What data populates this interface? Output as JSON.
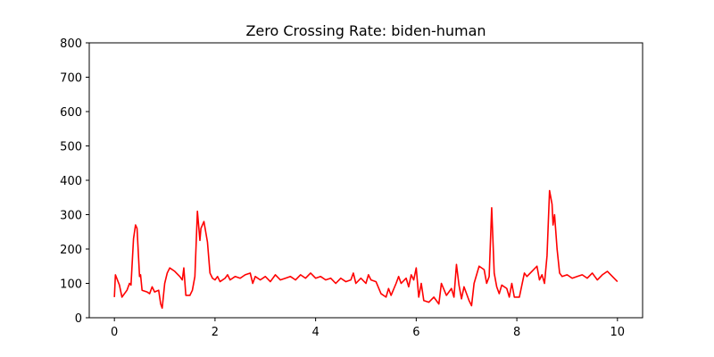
{
  "chart_data": {
    "type": "line",
    "title": "Zero Crossing Rate: biden-human",
    "color": "#ff0000",
    "x": [
      0.0,
      0.02,
      0.1,
      0.15,
      0.25,
      0.3,
      0.33,
      0.38,
      0.42,
      0.45,
      0.5,
      0.52,
      0.55,
      0.65,
      0.7,
      0.75,
      0.8,
      0.88,
      0.92,
      0.95,
      1.0,
      1.05,
      1.1,
      1.2,
      1.3,
      1.35,
      1.38,
      1.42,
      1.5,
      1.55,
      1.6,
      1.65,
      1.7,
      1.72,
      1.78,
      1.85,
      1.9,
      1.95,
      2.0,
      2.05,
      2.1,
      2.2,
      2.25,
      2.3,
      2.4,
      2.5,
      2.6,
      2.7,
      2.75,
      2.8,
      2.9,
      3.0,
      3.1,
      3.2,
      3.3,
      3.4,
      3.5,
      3.6,
      3.7,
      3.8,
      3.9,
      4.0,
      4.1,
      4.2,
      4.3,
      4.4,
      4.5,
      4.6,
      4.7,
      4.75,
      4.8,
      4.9,
      5.0,
      5.05,
      5.1,
      5.2,
      5.3,
      5.4,
      5.45,
      5.5,
      5.6,
      5.65,
      5.7,
      5.8,
      5.85,
      5.9,
      5.95,
      6.0,
      6.05,
      6.1,
      6.15,
      6.25,
      6.35,
      6.45,
      6.5,
      6.6,
      6.7,
      6.75,
      6.8,
      6.85,
      6.9,
      6.95,
      7.05,
      7.1,
      7.15,
      7.25,
      7.35,
      7.4,
      7.45,
      7.5,
      7.55,
      7.6,
      7.65,
      7.7,
      7.8,
      7.85,
      7.9,
      7.95,
      8.05,
      8.15,
      8.2,
      8.3,
      8.4,
      8.45,
      8.5,
      8.55,
      8.6,
      8.65,
      8.7,
      8.72,
      8.75,
      8.8,
      8.85,
      8.9,
      9.0,
      9.1,
      9.2,
      9.3,
      9.4,
      9.5,
      9.55,
      9.6,
      9.7,
      9.8,
      9.9,
      10.0
    ],
    "values": [
      60,
      125,
      95,
      60,
      80,
      100,
      95,
      230,
      270,
      260,
      120,
      125,
      80,
      75,
      70,
      90,
      75,
      80,
      40,
      28,
      100,
      130,
      145,
      135,
      120,
      110,
      145,
      65,
      65,
      80,
      120,
      310,
      225,
      260,
      280,
      220,
      130,
      115,
      110,
      120,
      105,
      115,
      125,
      110,
      120,
      115,
      125,
      130,
      100,
      120,
      110,
      120,
      105,
      125,
      110,
      115,
      120,
      110,
      125,
      115,
      130,
      115,
      120,
      110,
      115,
      100,
      115,
      105,
      110,
      130,
      100,
      115,
      100,
      125,
      110,
      105,
      70,
      60,
      85,
      65,
      100,
      120,
      100,
      115,
      90,
      125,
      110,
      145,
      60,
      100,
      50,
      45,
      60,
      40,
      100,
      65,
      85,
      60,
      155,
      95,
      55,
      90,
      50,
      35,
      100,
      150,
      140,
      100,
      120,
      320,
      130,
      90,
      70,
      95,
      85,
      60,
      100,
      60,
      60,
      130,
      120,
      135,
      150,
      110,
      125,
      100,
      180,
      370,
      330,
      270,
      300,
      200,
      130,
      120,
      125,
      115,
      120,
      125,
      115,
      130,
      120,
      110,
      125,
      135,
      120,
      105
    ],
    "xlim": [
      -0.5,
      10.5
    ],
    "ylim": [
      0,
      800
    ],
    "xticks": [
      0,
      2,
      4,
      6,
      8,
      10
    ],
    "yticks": [
      0,
      100,
      200,
      300,
      400,
      500,
      600,
      700,
      800
    ]
  }
}
